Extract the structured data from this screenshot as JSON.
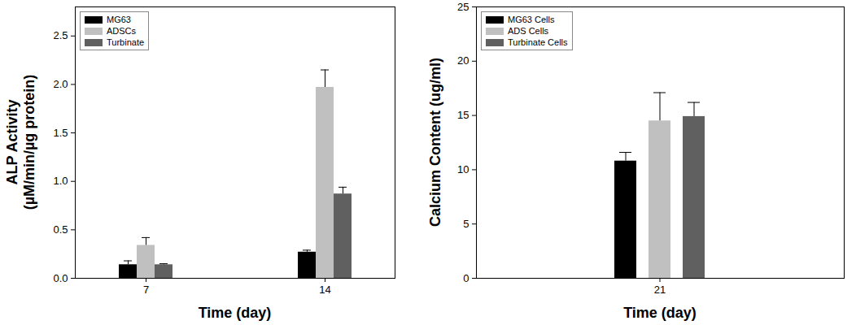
{
  "chart_data": [
    {
      "type": "bar",
      "x_label": "Time (day)",
      "y_label": "ALP Activity\n(µM/min/µg protein)",
      "categories": [
        "7",
        "14"
      ],
      "series": [
        {
          "name": "MG63",
          "color": "#000000",
          "values": [
            0.14,
            0.27
          ],
          "errors": [
            0.04,
            0.02
          ]
        },
        {
          "name": "ADSCs",
          "color": "#c0c0c0",
          "values": [
            0.34,
            1.97
          ],
          "errors": [
            0.08,
            0.18
          ]
        },
        {
          "name": "Turbinate",
          "color": "#606060",
          "values": [
            0.14,
            0.87
          ],
          "errors": [
            0.01,
            0.07
          ]
        }
      ],
      "ylim": [
        0,
        2.8
      ],
      "yticks": [
        {
          "value": 0,
          "label": "0.0"
        },
        0.5,
        {
          "value": 1,
          "label": "1.0"
        },
        1.5,
        {
          "value": 2,
          "label": "2.0"
        },
        2.5
      ],
      "legend": "upper left"
    },
    {
      "type": "bar",
      "x_label": "Time (day)",
      "y_label": "Calcium Content (ug/ml)",
      "categories": [
        "21"
      ],
      "series": [
        {
          "name": "MG63 Cells",
          "color": "#000000",
          "values": [
            10.8
          ],
          "errors": [
            0.8
          ]
        },
        {
          "name": "ADS Cells",
          "color": "#c0c0c0",
          "values": [
            14.5
          ],
          "errors": [
            2.6
          ]
        },
        {
          "name": "Turbinate Cells",
          "color": "#606060",
          "values": [
            14.9
          ],
          "errors": [
            1.3
          ]
        }
      ],
      "ylim": [
        0,
        25
      ],
      "yticks": [
        0,
        5,
        10,
        15,
        20,
        25
      ],
      "legend": "upper left"
    }
  ]
}
